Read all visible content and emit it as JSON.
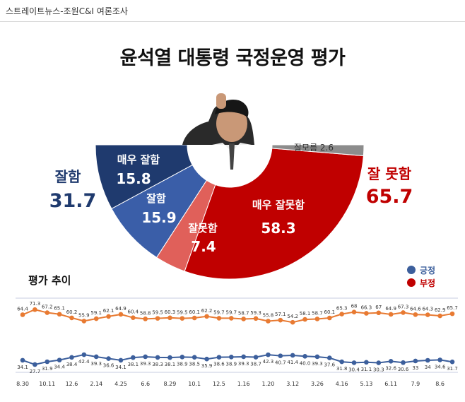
{
  "source": "스트레이트뉴스-조원C&I 여론조사",
  "title": "윤석열 대통령 국정운영 평가",
  "colors": {
    "dark_blue": "#1f3a6e",
    "blue": "#3a5ea8",
    "dark_red": "#c00000",
    "light_red": "#e0605a",
    "gray": "#8c8c8c",
    "line_red": "#e87a32",
    "line_blue": "#3c5f9c"
  },
  "chart_data": [
    {
      "type": "pie",
      "subtype": "half-donut",
      "groups": [
        {
          "label": "잘함",
          "value": "31.7"
        },
        {
          "label": "잘 못함",
          "value": "65.7"
        }
      ],
      "slices": [
        {
          "label": "매우 잘함",
          "value": 15.8,
          "display": "15.8"
        },
        {
          "label": "잘함",
          "value": 15.9,
          "display": "15.9"
        },
        {
          "label": "잘못함",
          "value": 7.4,
          "display": "7.4"
        },
        {
          "label": "매우 잘못함",
          "value": 58.3,
          "display": "58.3"
        },
        {
          "label": "잘모름",
          "value": 2.6,
          "display": "잘모름 2.6"
        }
      ]
    },
    {
      "type": "line",
      "title": "평가 추이",
      "legend": [
        "긍정",
        "부정"
      ],
      "x_tick_labels": [
        "8.30",
        "10.11",
        "12.6",
        "2.14",
        "4.25",
        "6.6",
        "8.29",
        "10.1",
        "12.5",
        "1.16",
        "1.20",
        "3.12",
        "3.26",
        "4.16",
        "5.13",
        "6.11",
        "7.9",
        "8.6"
      ],
      "series": [
        {
          "name": "부정",
          "values": [
            64.4,
            71.3,
            67.2,
            65.1,
            60.2,
            55.9,
            59.1,
            62.1,
            64.9,
            60.4,
            58.8,
            59.5,
            60.3,
            59.5,
            60.1,
            62.2,
            59.7,
            59.7,
            58.7,
            59.3,
            55.8,
            57.1,
            54.2,
            58.1,
            58.7,
            60.1,
            65.3,
            68,
            66.3,
            67,
            64.9,
            67.3,
            64.6,
            64.3,
            62.9,
            65.7
          ],
          "labels": [
            "64.4",
            "71.3",
            "67.2",
            "65.1",
            "60.2",
            "55.9",
            "59.1",
            "62.1",
            "64.9",
            "60.4",
            "58.8",
            "59.5",
            "60.3",
            "59.5",
            "60.1",
            "62.2",
            "59.7",
            "59.7",
            "58.7",
            "59.3",
            "55.8",
            "57.1",
            "54.2",
            "58.1",
            "58.7",
            "60.1",
            "65.3",
            "68",
            "66.3",
            "67",
            "64.9",
            "67.3",
            "64.6",
            "64.3",
            "62.9",
            "65.7"
          ]
        },
        {
          "name": "긍정",
          "values": [
            34.1,
            27.7,
            31.9,
            34.4,
            38.4,
            42.4,
            39.3,
            36.6,
            34.1,
            38.1,
            39.3,
            38.3,
            38.1,
            38.9,
            38.5,
            35.9,
            38.6,
            38.9,
            39.3,
            38.7,
            42.3,
            40.7,
            41.4,
            40,
            39.3,
            37.6,
            31.8,
            30.4,
            31.1,
            30.3,
            32.6,
            30.6,
            33,
            34,
            34.6,
            31.7
          ],
          "labels": [
            "34.1",
            "27.7",
            "31.9",
            "34.4",
            "38.4",
            "42.4",
            "39.3",
            "36.6",
            "34.1",
            "38.1",
            "39.3",
            "38.3",
            "38.1",
            "38.9",
            "38.5",
            "35.9",
            "38.6",
            "38.9",
            "39.3",
            "38.7",
            "42.3",
            "40.7",
            "41.4",
            "40.0",
            "39.3",
            "37.6",
            "31.8",
            "30.4",
            "31.1",
            "30.3",
            "32.6",
            "30.6",
            "33",
            "34",
            "34.6",
            "31.7"
          ]
        }
      ]
    }
  ]
}
